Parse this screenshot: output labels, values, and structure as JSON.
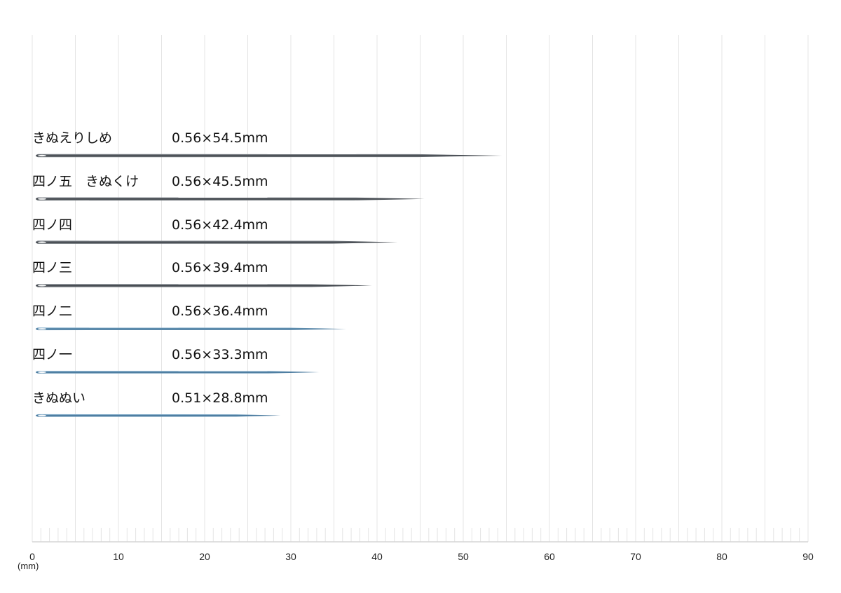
{
  "chart_data": {
    "type": "bar",
    "x_unit": "(mm)",
    "xlim": [
      0,
      90
    ],
    "x_ticks": [
      0,
      10,
      20,
      30,
      40,
      50,
      60,
      70,
      80,
      90
    ],
    "grid": true,
    "items": [
      {
        "name": "きぬえりしめ",
        "size_label": "0.56×54.5mm",
        "diameter": 0.56,
        "length": 54.5
      },
      {
        "name": "四ノ五　きぬくけ",
        "size_label": "0.56×45.5mm",
        "diameter": 0.56,
        "length": 45.5
      },
      {
        "name": "四ノ四",
        "size_label": "0.56×42.4mm",
        "diameter": 0.56,
        "length": 42.4
      },
      {
        "name": "四ノ三",
        "size_label": "0.56×39.4mm",
        "diameter": 0.56,
        "length": 39.4
      },
      {
        "name": "四ノ二",
        "size_label": "0.56×36.4mm",
        "diameter": 0.56,
        "length": 36.4
      },
      {
        "name": "四ノ一",
        "size_label": "0.56×33.3mm",
        "diameter": 0.56,
        "length": 33.3
      },
      {
        "name": "きぬぬい",
        "size_label": "0.51×28.8mm",
        "diameter": 0.51,
        "length": 28.8
      }
    ],
    "colors": {
      "grid": "#e4e4e4",
      "axis": "#d6d6d6",
      "needle_dark": "#4a4f55",
      "needle_blue": "#4a7fa6"
    }
  }
}
